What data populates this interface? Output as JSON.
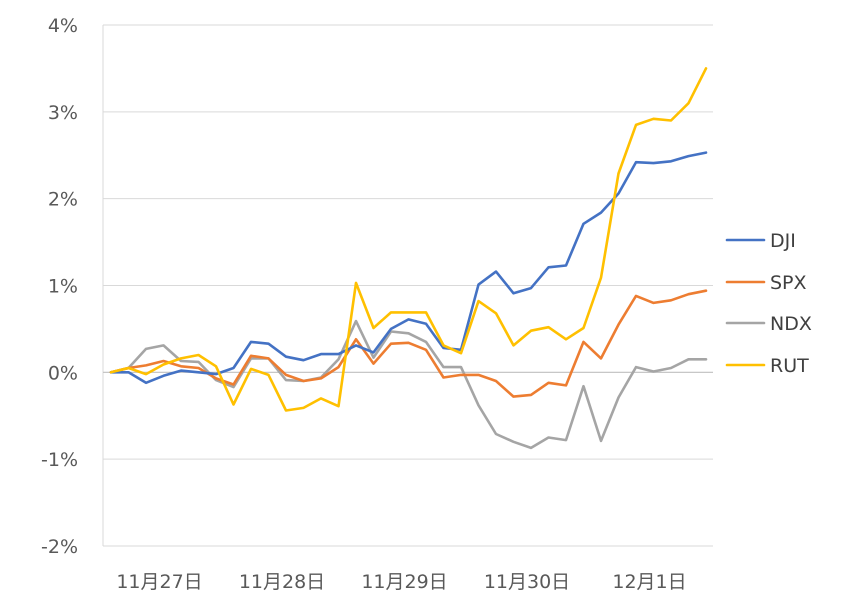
{
  "chart_data": {
    "type": "line",
    "title": "",
    "xlabel": "",
    "ylabel": "",
    "ylim": [
      -2,
      4
    ],
    "yticks": [
      "4%",
      "3%",
      "2%",
      "1%",
      "0%",
      "-1%",
      "-2%"
    ],
    "ytick_values": [
      4,
      3,
      2,
      1,
      0,
      -1,
      -2
    ],
    "y_unit": "%",
    "x_date_labels": [
      "11月27日",
      "11月28日",
      "11月29日",
      "11月30日",
      "12月1日"
    ],
    "x_date_label_positions": [
      3,
      10,
      17,
      24,
      31
    ],
    "x_points": 35,
    "grid": "horizontal",
    "legend_position": "right",
    "series": [
      {
        "name": "DJI",
        "color": "#4472C4",
        "values": [
          0.0,
          0.0,
          -0.12,
          -0.04,
          0.02,
          0.0,
          -0.02,
          0.05,
          0.35,
          0.33,
          0.18,
          0.14,
          0.21,
          0.21,
          0.31,
          0.23,
          0.5,
          0.61,
          0.56,
          0.28,
          0.26,
          1.01,
          1.16,
          0.91,
          0.97,
          1.21,
          1.23,
          1.71,
          1.84,
          2.06,
          2.42,
          2.41,
          2.43,
          2.49,
          2.53
        ]
      },
      {
        "name": "SPX",
        "color": "#ED7D31",
        "values": [
          0.0,
          0.05,
          0.08,
          0.13,
          0.07,
          0.05,
          -0.07,
          -0.14,
          0.19,
          0.16,
          -0.03,
          -0.1,
          -0.07,
          0.06,
          0.38,
          0.1,
          0.33,
          0.34,
          0.26,
          -0.06,
          -0.03,
          -0.03,
          -0.1,
          -0.28,
          -0.26,
          -0.12,
          -0.15,
          0.35,
          0.16,
          0.55,
          0.88,
          0.8,
          0.83,
          0.9,
          0.94
        ]
      },
      {
        "name": "NDX",
        "color": "#A5A5A5",
        "values": [
          0.0,
          0.05,
          0.27,
          0.31,
          0.13,
          0.12,
          -0.09,
          -0.17,
          0.16,
          0.16,
          -0.09,
          -0.1,
          -0.06,
          0.15,
          0.59,
          0.17,
          0.47,
          0.45,
          0.35,
          0.06,
          0.06,
          -0.38,
          -0.71,
          -0.8,
          -0.87,
          -0.75,
          -0.78,
          -0.16,
          -0.79,
          -0.29,
          0.06,
          0.01,
          0.05,
          0.15,
          0.15
        ]
      },
      {
        "name": "RUT",
        "color": "#FFC000",
        "values": [
          0.0,
          0.05,
          -0.02,
          0.09,
          0.16,
          0.2,
          0.07,
          -0.37,
          0.04,
          -0.03,
          -0.44,
          -0.41,
          -0.3,
          -0.39,
          1.03,
          0.51,
          0.69,
          0.69,
          0.69,
          0.31,
          0.22,
          0.82,
          0.68,
          0.31,
          0.48,
          0.52,
          0.38,
          0.51,
          1.09,
          2.29,
          2.85,
          2.92,
          2.9,
          3.1,
          3.5
        ]
      }
    ]
  }
}
